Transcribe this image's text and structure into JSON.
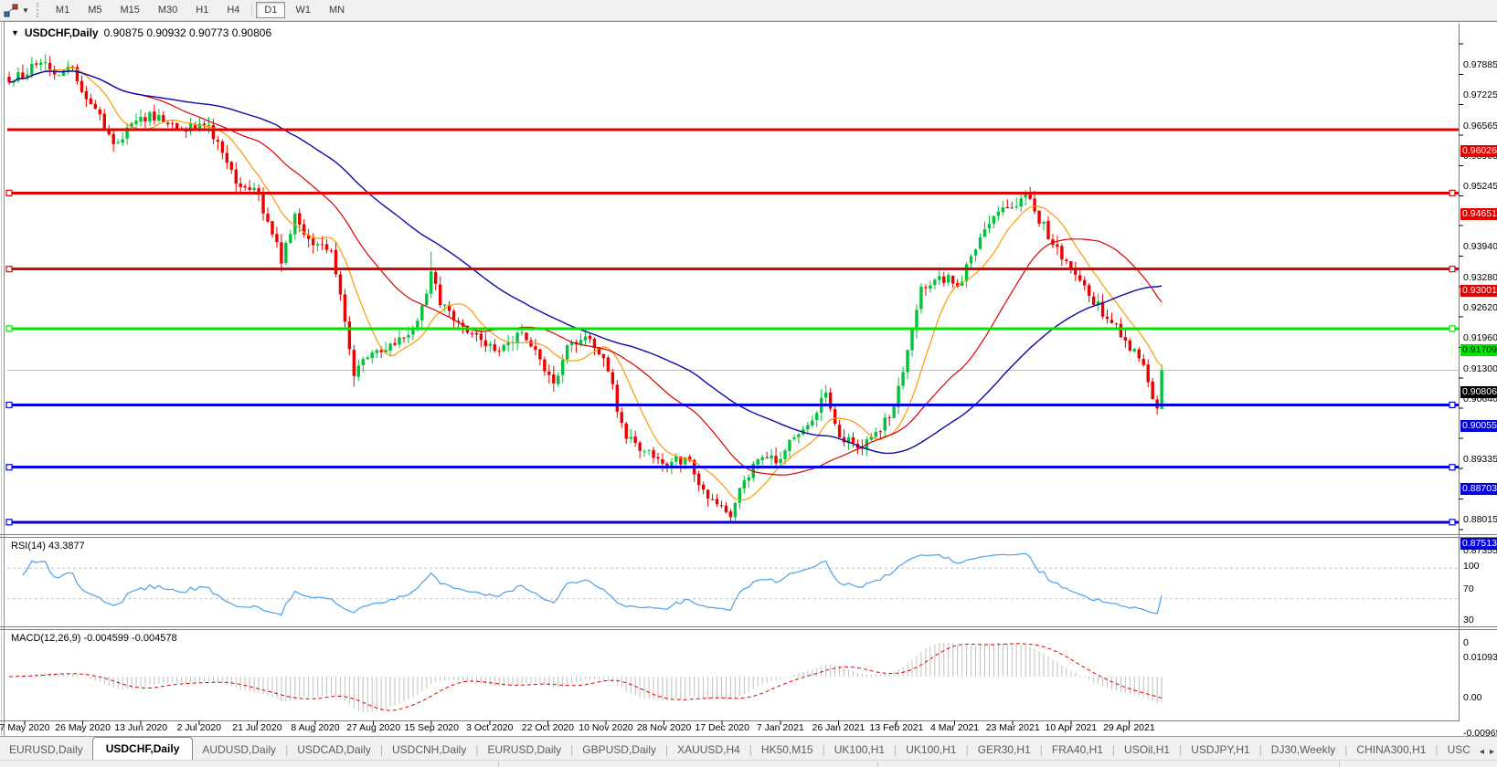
{
  "toolbar": {
    "chart_tool_icon": "objects-chart-icon",
    "timeframes": [
      "M1",
      "M5",
      "M15",
      "M30",
      "H1",
      "H4",
      "D1",
      "W1",
      "MN"
    ],
    "active_timeframe": "D1"
  },
  "chart": {
    "title": "USDCHF,Daily",
    "ohlc": "0.90875 0.90932 0.90773 0.90806",
    "colors": {
      "up": "#00C23C",
      "down": "#ED0000",
      "ma_fast": "#FF9900",
      "ma_mid": "#DE0000",
      "ma_slow": "#0A0AA8",
      "hline_red": "#E00000",
      "hline_green": "#00E400",
      "hline_blue": "#0000DE",
      "current_line": "#BDBDBD",
      "axis_text": "#000000",
      "rsi_line": "#4D9FE8",
      "level_dash": "#C0C0C0",
      "macd_hist": "#C0C0C0",
      "macd_signal": "#DE0000"
    },
    "price_axis_ticks": [
      0.97885,
      0.97225,
      0.96565,
      0.95905,
      0.95245,
      0.94585,
      0.9394,
      0.9328,
      0.9262,
      0.9196,
      0.913,
      0.9064,
      0.8998,
      0.89335,
      0.88675,
      0.88015,
      0.87355
    ],
    "h_lines": [
      {
        "price": 0.96026,
        "label": "0.96026",
        "color": "#E00000",
        "text": "#FFFFFF",
        "handles": false
      },
      {
        "price": 0.94651,
        "label": "0.94651",
        "color": "#E00000",
        "text": "#FFFFFF",
        "handles": true
      },
      {
        "price": 0.93001,
        "label": "0.93001",
        "color": "#E00000",
        "text": "#FFFFFF",
        "handles": true
      },
      {
        "price": 0.91709,
        "label": "0.91709",
        "color": "#00E400",
        "text": "#000000",
        "handles": true
      },
      {
        "price": 0.90055,
        "label": "0.90055",
        "color": "#0000DE",
        "text": "#FFFFFF",
        "handles": true
      },
      {
        "price": 0.88703,
        "label": "0.88703",
        "color": "#0000DE",
        "text": "#FFFFFF",
        "handles": true
      },
      {
        "price": 0.87513,
        "label": "0.87513",
        "color": "#0000DE",
        "text": "#FFFFFF",
        "handles": true
      }
    ],
    "current_price": {
      "value": 0.90806,
      "label": "0.90806",
      "bg": "#000000",
      "text": "#FFFFFF"
    },
    "date_axis": [
      "7 May 2020",
      "26 May 2020",
      "13 Jun 2020",
      "2 Jul 2020",
      "21 Jul 2020",
      "8 Aug 2020",
      "27 Aug 2020",
      "15 Sep 2020",
      "3 Oct 2020",
      "22 Oct 2020",
      "10 Nov 2020",
      "28 Nov 2020",
      "17 Dec 2020",
      "7 Jan 2021",
      "26 Jan 2021",
      "13 Feb 2021",
      "4 Mar 2021",
      "23 Mar 2021",
      "10 Apr 2021",
      "29 Apr 2021"
    ],
    "moving_averages": [
      {
        "period": 10,
        "color": "#FF9900",
        "width": 1.2
      },
      {
        "period": 30,
        "color": "#DE0000",
        "width": 1.2
      },
      {
        "period": 60,
        "color": "#0A0AA8",
        "width": 1.4
      }
    ],
    "series": {
      "type": "candlestick",
      "bar_count": 255,
      "seed": 20210507,
      "noise": 0.0015,
      "wick": 0.0019,
      "last_close": 0.90806,
      "anchors": [
        [
          0,
          0.9705
        ],
        [
          7,
          0.9748
        ],
        [
          10,
          0.9722
        ],
        [
          14,
          0.9738
        ],
        [
          18,
          0.9658
        ],
        [
          22,
          0.9592
        ],
        [
          24,
          0.9575
        ],
        [
          28,
          0.9622
        ],
        [
          33,
          0.9634
        ],
        [
          38,
          0.96
        ],
        [
          44,
          0.9612
        ],
        [
          47,
          0.9552
        ],
        [
          51,
          0.9478
        ],
        [
          55,
          0.9462
        ],
        [
          58,
          0.9375
        ],
        [
          60,
          0.9312
        ],
        [
          63,
          0.942
        ],
        [
          67,
          0.9352
        ],
        [
          71,
          0.934
        ],
        [
          73,
          0.9245
        ],
        [
          76,
          0.9068
        ],
        [
          78,
          0.9105
        ],
        [
          82,
          0.912
        ],
        [
          86,
          0.9152
        ],
        [
          90,
          0.9188
        ],
        [
          93,
          0.9295
        ],
        [
          95,
          0.9222
        ],
        [
          99,
          0.9185
        ],
        [
          103,
          0.9158
        ],
        [
          108,
          0.9122
        ],
        [
          112,
          0.9162
        ],
        [
          116,
          0.9125
        ],
        [
          120,
          0.9052
        ],
        [
          123,
          0.9135
        ],
        [
          128,
          0.9148
        ],
        [
          132,
          0.9078
        ],
        [
          136,
          0.8932
        ],
        [
          141,
          0.8908
        ],
        [
          145,
          0.8872
        ],
        [
          149,
          0.8892
        ],
        [
          153,
          0.8822
        ],
        [
          157,
          0.8788
        ],
        [
          159,
          0.8762
        ],
        [
          162,
          0.8842
        ],
        [
          166,
          0.8892
        ],
        [
          170,
          0.8888
        ],
        [
          174,
          0.8942
        ],
        [
          178,
          0.8988
        ],
        [
          180,
          0.9032
        ],
        [
          183,
          0.8935
        ],
        [
          187,
          0.8912
        ],
        [
          192,
          0.8948
        ],
        [
          195,
          0.9002
        ],
        [
          198,
          0.9125
        ],
        [
          201,
          0.9262
        ],
        [
          205,
          0.9285
        ],
        [
          209,
          0.9262
        ],
        [
          212,
          0.9328
        ],
        [
          216,
          0.9398
        ],
        [
          220,
          0.9432
        ],
        [
          224,
          0.9462
        ],
        [
          226,
          0.9425
        ],
        [
          230,
          0.9352
        ],
        [
          234,
          0.9298
        ],
        [
          238,
          0.9242
        ],
        [
          242,
          0.9192
        ],
        [
          246,
          0.9145
        ],
        [
          250,
          0.9092
        ],
        [
          252,
          0.9018
        ],
        [
          253,
          0.8998
        ],
        [
          254,
          0.90806
        ]
      ],
      "spike_high": [
        [
          7,
          0.9757
        ],
        [
          93,
          0.9338
        ],
        [
          180,
          0.9046
        ],
        [
          224,
          0.9472
        ]
      ],
      "spike_low": [
        [
          60,
          0.9296
        ],
        [
          76,
          0.9045
        ],
        [
          120,
          0.9034
        ],
        [
          159,
          0.8752
        ],
        [
          253,
          0.8985
        ]
      ]
    }
  },
  "rsi": {
    "label": "RSI(14) 43.3877",
    "period": 14,
    "value": 43.3877,
    "axis": [
      "100",
      "70",
      "30",
      "0"
    ],
    "levels": [
      70,
      30
    ]
  },
  "macd": {
    "label": "MACD(12,26,9) -0.004599 -0.004578",
    "fast": 12,
    "slow": 26,
    "signal": 9,
    "main_value": -0.004599,
    "signal_value": -0.004578,
    "axis": [
      {
        "text": "0.010933",
        "value": 0.010933
      },
      {
        "text": "0.00",
        "value": 0
      },
      {
        "text": "-0.00965",
        "value": -0.00965
      }
    ]
  },
  "tabs": {
    "items": [
      "EURUSD,Daily",
      "USDCHF,Daily",
      "AUDUSD,Daily",
      "USDCAD,Daily",
      "USDCNH,Daily",
      "EURUSD,Daily",
      "GBPUSD,Daily",
      "XAUUSD,H4",
      "HK50,M15",
      "UK100,H1",
      "UK100,H1",
      "GER30,H1",
      "FRA40,H1",
      "USOil,H1",
      "USDJPY,H1",
      "DJ30,Weekly",
      "CHINA300,H1",
      "USC"
    ],
    "active_index": 1,
    "scroll_left": "◂",
    "scroll_right": "▸"
  }
}
